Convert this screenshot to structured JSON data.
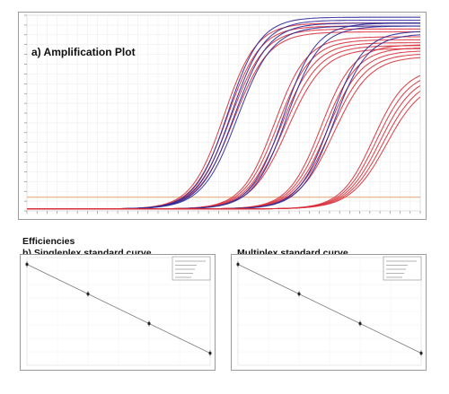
{
  "figure": {
    "amplification_title": "a) Amplification Plot",
    "efficiencies_label": "Efficiencies",
    "singleplex_title": "b) Singleplex standard curve",
    "multiplex_title": "Multiplex standard curve"
  },
  "chart_data": [
    {
      "type": "line",
      "title": "a) Amplification Plot",
      "xlabel": "",
      "ylabel": "",
      "xlim": [
        1,
        40
      ],
      "ylim": [
        0,
        1
      ],
      "grid": true,
      "threshold": {
        "value": 0.07,
        "color": "#e2a070"
      },
      "colors": {
        "red": "#d8303a",
        "blue": "#2a2a9a"
      },
      "series": [
        {
          "color": "red",
          "midpoint": 21.0,
          "plateau": 0.95,
          "curves": 4
        },
        {
          "color": "blue",
          "midpoint": 21.4,
          "plateau": 0.98,
          "curves": 4
        },
        {
          "color": "red",
          "midpoint": 26.2,
          "plateau": 0.88,
          "curves": 5
        },
        {
          "color": "blue",
          "midpoint": 26.6,
          "plateau": 0.95,
          "curves": 2
        },
        {
          "color": "red",
          "midpoint": 30.8,
          "plateau": 0.84,
          "curves": 5
        },
        {
          "color": "blue",
          "midpoint": 31.3,
          "plateau": 0.91,
          "curves": 2
        },
        {
          "color": "red",
          "midpoint": 36.0,
          "plateau": 0.72,
          "curves": 5
        }
      ]
    },
    {
      "type": "scatter",
      "title": "b) Singleplex standard curve",
      "x": [
        1,
        2,
        3,
        4
      ],
      "y": [
        37.5,
        26.5,
        15.5,
        4.5
      ],
      "xlim": [
        1,
        4
      ],
      "ylim": [
        0,
        40
      ],
      "fit": "linear",
      "grid": true,
      "legend": "top-right"
    },
    {
      "type": "scatter",
      "title": "Multiplex standard curve",
      "x": [
        1,
        2,
        3,
        4
      ],
      "y": [
        37.5,
        26.5,
        15.5,
        4.5
      ],
      "xlim": [
        1,
        4
      ],
      "ylim": [
        0,
        40
      ],
      "fit": "linear",
      "grid": true,
      "legend": "top-right"
    }
  ]
}
